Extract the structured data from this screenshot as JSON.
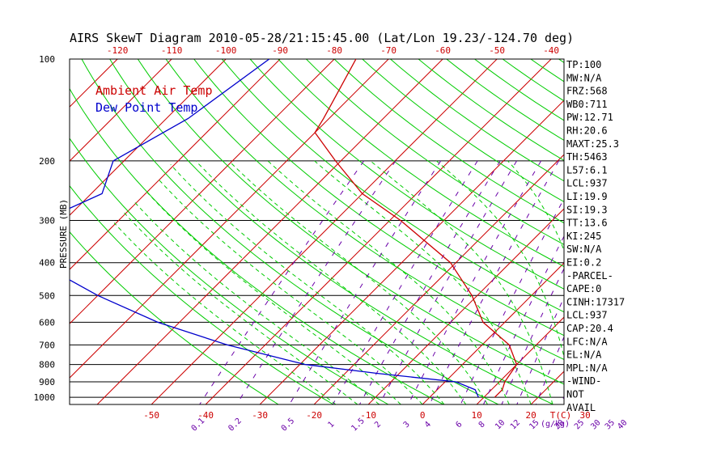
{
  "title": "AIRS SkewT Diagram 2010-05-28/21:15:45.00 (Lat/Lon 19.23/-124.70 deg)",
  "legend": [
    {
      "label": "Ambient Air Temp",
      "color": "#cc0000"
    },
    {
      "label": "Dew Point Temp",
      "color": "#0000cc"
    }
  ],
  "colors": {
    "temperature": "#cc0000",
    "dewpoint": "#0000cc",
    "dry_adiabat": "#00cc00",
    "moist_adiabat": "#00cc00",
    "mixing_ratio": "#6a00a8",
    "isotherm": "#cc0000",
    "isobar": "#000000"
  },
  "chart_data": {
    "type": "line",
    "ylabel": "PRESSURE (MB)",
    "y_scale": "log",
    "ylim": [
      1050,
      100
    ],
    "pressure_levels": [
      100,
      200,
      300,
      400,
      500,
      600,
      700,
      800,
      900,
      1000
    ],
    "pressure_ticks": [
      "100",
      "200",
      "300",
      "400",
      "500",
      "600",
      "700",
      "800",
      "900",
      "1000"
    ],
    "top_temp_ticks": [
      "-120",
      "-110",
      "-100",
      "-90",
      "-80",
      "-70",
      "-60",
      "-50",
      "-40"
    ],
    "bottom_temp_ticks": [
      "-50",
      "-40",
      "-30",
      "-20",
      "-10",
      "0",
      "10",
      "20",
      "30"
    ],
    "temp_unit_label": "T(C)",
    "mixing_ratio_ticks": [
      "0.1",
      "0.2",
      "0.5",
      "1",
      "1.5",
      "2",
      "3",
      "4",
      "6",
      "8",
      "10",
      "12",
      "15",
      "20",
      "25",
      "30",
      "35",
      "40"
    ],
    "mixing_ratio_unit_label": "(g/kg)",
    "series": [
      {
        "name": "Ambient Air Temp",
        "points": [
          [
            100,
            -76
          ],
          [
            150,
            -71
          ],
          [
            165,
            -70
          ],
          [
            200,
            -61
          ],
          [
            250,
            -50
          ],
          [
            300,
            -38
          ],
          [
            400,
            -21
          ],
          [
            500,
            -11
          ],
          [
            600,
            -4
          ],
          [
            700,
            5
          ],
          [
            800,
            10
          ],
          [
            900,
            11
          ],
          [
            950,
            12
          ],
          [
            1000,
            12
          ]
        ]
      },
      {
        "name": "Dew Point Temp",
        "points": [
          [
            100,
            -92
          ],
          [
            150,
            -96
          ],
          [
            200,
            -102
          ],
          [
            250,
            -98
          ],
          [
            300,
            -104
          ],
          [
            400,
            -97
          ],
          [
            500,
            -80
          ],
          [
            600,
            -64
          ],
          [
            700,
            -47
          ],
          [
            800,
            -29
          ],
          [
            850,
            -14
          ],
          [
            900,
            2
          ],
          [
            950,
            7
          ],
          [
            1000,
            9
          ]
        ]
      }
    ],
    "indices": [
      "TP:100",
      "MW:N/A",
      "FRZ:568",
      "WB0:711",
      "PW:12.71",
      "RH:20.6",
      "MAXT:25.3",
      "TH:5463",
      "L57:6.1",
      "LCL:937",
      "LI:19.9",
      "SI:19.3",
      "TT:13.6",
      "KI:245",
      "SW:N/A",
      "EI:0.2",
      "-PARCEL-",
      "CAPE:0",
      "CINH:17317",
      "LCL:937",
      "CAP:20.4",
      "LFC:N/A",
      "EL:N/A",
      "MPL:N/A",
      "-WIND-",
      "NOT",
      "AVAIL"
    ]
  }
}
